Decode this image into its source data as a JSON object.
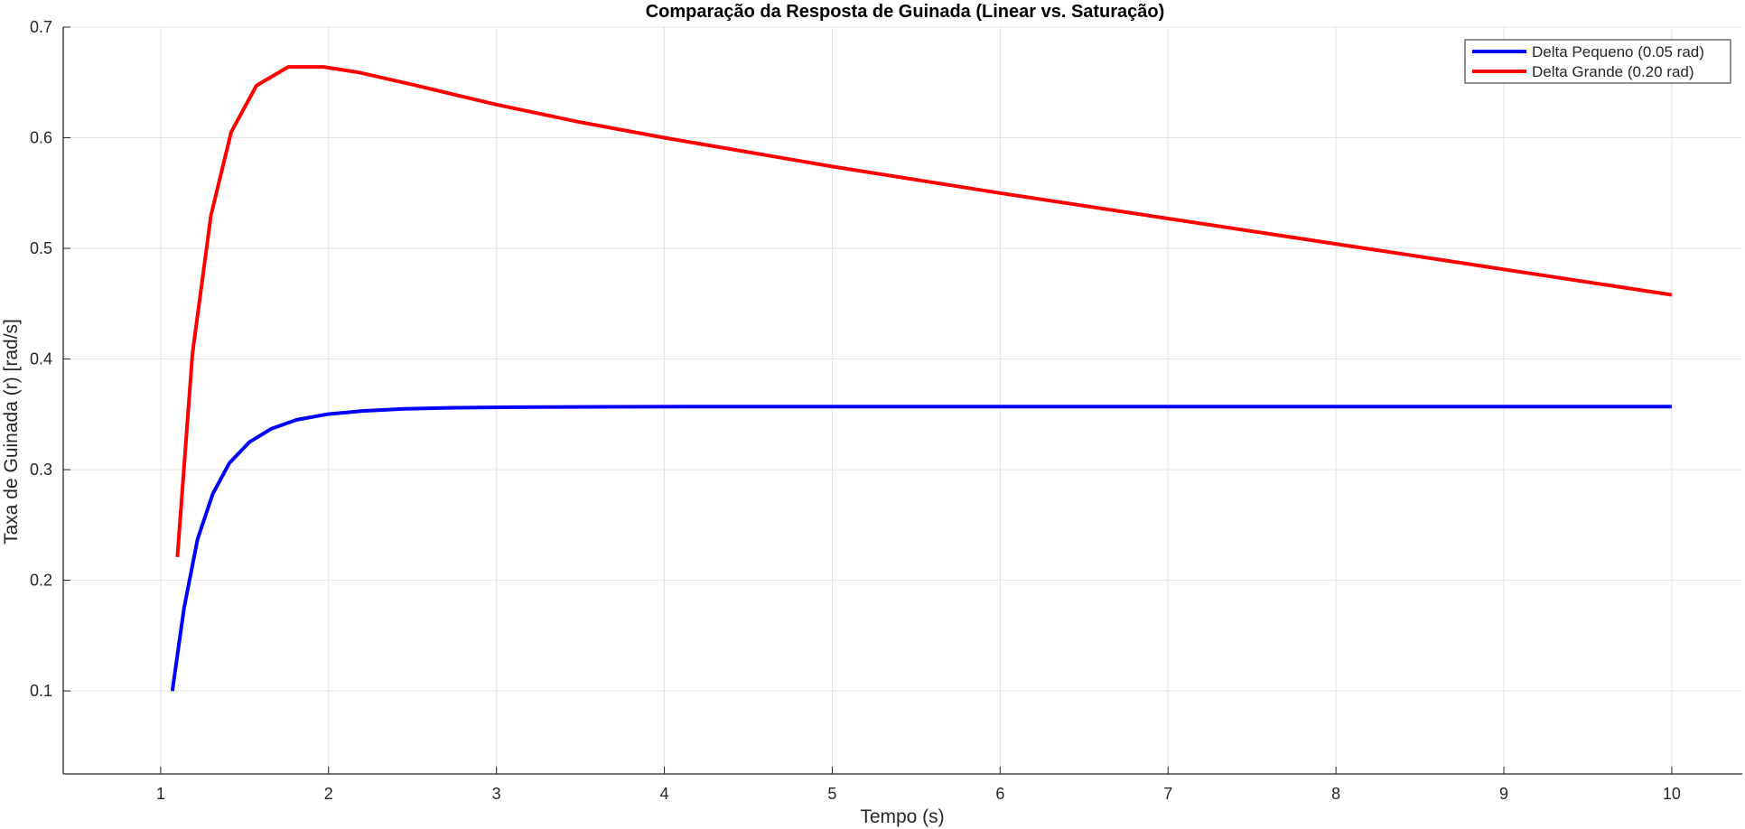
{
  "chart_data": {
    "type": "line",
    "title": "Comparação da Resposta de Guinada (Linear vs. Saturação)",
    "xlabel": "Tempo (s)",
    "ylabel": "Taxa de Guinada (r) [rad/s]",
    "xlim": [
      0.42,
      10.42
    ],
    "ylim": [
      0.025,
      0.7
    ],
    "xticks": [
      1,
      2,
      3,
      4,
      5,
      6,
      7,
      8,
      9,
      10
    ],
    "xtick_labels": [
      "1",
      "2",
      "3",
      "4",
      "5",
      "6",
      "7",
      "8",
      "9",
      "10"
    ],
    "yticks": [
      0.1,
      0.2,
      0.3,
      0.4,
      0.5,
      0.6,
      0.7
    ],
    "ytick_labels": [
      "0.1",
      "0.2",
      "0.3",
      "0.4",
      "0.5",
      "0.6",
      "0.7"
    ],
    "grid": true,
    "legend_position": "top-right",
    "series": [
      {
        "name": "Delta Pequeno (0.05 rad)",
        "color": "#0000ff",
        "x": [
          1.07,
          1.14,
          1.22,
          1.31,
          1.41,
          1.53,
          1.66,
          1.81,
          1.99,
          2.2,
          2.45,
          2.75,
          3.1,
          3.6,
          4.2,
          5,
          6,
          7,
          8,
          9,
          10
        ],
        "y": [
          0.1,
          0.175,
          0.237,
          0.278,
          0.306,
          0.325,
          0.337,
          0.345,
          0.35,
          0.353,
          0.355,
          0.356,
          0.3565,
          0.3568,
          0.357,
          0.357,
          0.357,
          0.357,
          0.357,
          0.357,
          0.357
        ]
      },
      {
        "name": "Delta Grande (0.20 rad)",
        "color": "#ff0000",
        "x": [
          1.1,
          1.19,
          1.3,
          1.42,
          1.57,
          1.76,
          1.97,
          2.18,
          2.5,
          3,
          3.5,
          4,
          5,
          6,
          7,
          8,
          9,
          10
        ],
        "y": [
          0.221,
          0.405,
          0.53,
          0.605,
          0.647,
          0.664,
          0.664,
          0.659,
          0.648,
          0.63,
          0.614,
          0.6,
          0.574,
          0.55,
          0.527,
          0.504,
          0.481,
          0.458
        ]
      }
    ]
  }
}
